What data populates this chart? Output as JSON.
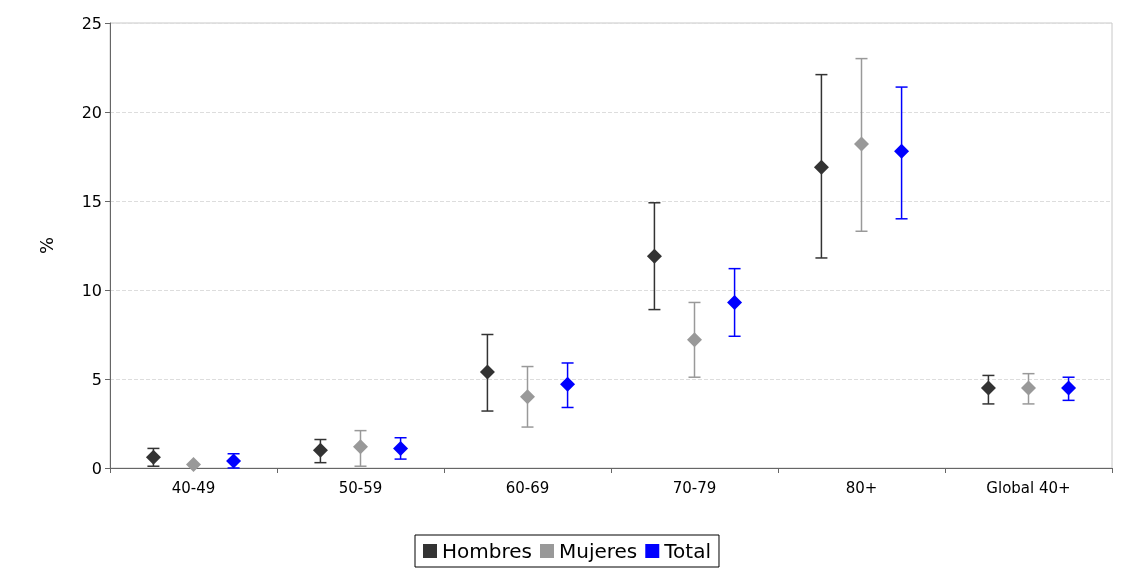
{
  "chart_data": {
    "type": "scatter",
    "ylabel": "%",
    "categories": [
      "40-49",
      "50-59",
      "60-69",
      "70-79",
      "80+",
      "Global 40+"
    ],
    "ylim": [
      0,
      25
    ],
    "yticks": [
      0,
      5,
      10,
      15,
      20,
      25
    ],
    "grid": "y",
    "legend": "bottom",
    "marker": "diamond",
    "series": [
      {
        "name": "Hombres",
        "color": "#333333",
        "values": [
          0.6,
          1.0,
          5.4,
          11.9,
          16.9,
          4.5
        ],
        "errors": [
          [
            0.1,
            1.1
          ],
          [
            0.3,
            1.6
          ],
          [
            3.2,
            7.5
          ],
          [
            8.9,
            14.9
          ],
          [
            11.8,
            22.1
          ],
          [
            3.6,
            5.2
          ]
        ]
      },
      {
        "name": "Mujeres",
        "color": "#999999",
        "values": [
          0.2,
          1.2,
          4.0,
          7.2,
          18.2,
          4.5
        ],
        "errors": [
          null,
          [
            0.1,
            2.1
          ],
          [
            2.3,
            5.7
          ],
          [
            5.1,
            9.3
          ],
          [
            13.3,
            23.0
          ],
          [
            3.6,
            5.3
          ]
        ]
      },
      {
        "name": "Total",
        "color": "#0000ff",
        "values": [
          0.4,
          1.1,
          4.7,
          9.3,
          17.8,
          4.5
        ],
        "errors": [
          [
            0,
            0.8
          ],
          [
            0.5,
            1.7
          ],
          [
            3.4,
            5.9
          ],
          [
            7.4,
            11.2
          ],
          [
            14.0,
            21.4
          ],
          [
            3.8,
            5.1
          ]
        ]
      }
    ]
  }
}
